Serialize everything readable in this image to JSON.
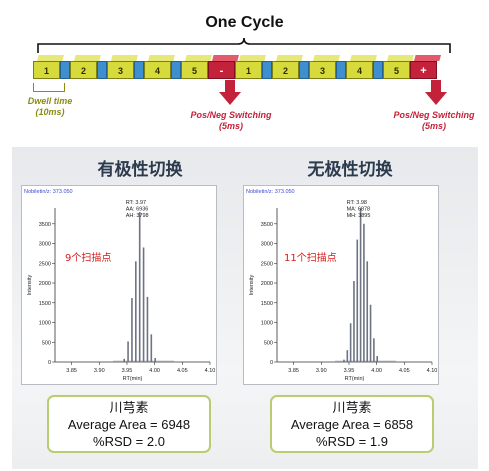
{
  "cycle": {
    "title": "One Cycle",
    "segments": [
      "1",
      "2",
      "3",
      "4",
      "5",
      "-",
      "1",
      "2",
      "3",
      "4",
      "5",
      "+"
    ],
    "dwell_label": [
      "Dwell time",
      "(10ms)"
    ],
    "switch_label_left": [
      "Pos/Neg Switching",
      "(5ms)"
    ],
    "switch_label_right": [
      "Pos/Neg Switching",
      "(5ms)"
    ],
    "colors": {
      "dwell": "#d6da3a",
      "gap": "#3d8fcf",
      "switch": "#c4223a",
      "arrow": "#c4223a"
    }
  },
  "panels": [
    {
      "title": "有极性切换",
      "chart_meta": "Nobiletin/z: 373.050",
      "peak_info": [
        "RT: 3.97",
        "AA: 6936",
        "AH: 3798"
      ],
      "annotation": "9个扫描点",
      "result": {
        "compound": "川芎素",
        "area": "Average Area = 6948",
        "rsd": "%RSD = 2.0"
      }
    },
    {
      "title": "无极性切换",
      "chart_meta": "Nobiletin/z: 373.050",
      "peak_info": [
        "RT: 3.98",
        "MA: 6878",
        "MH: 3895"
      ],
      "annotation": "11个扫描点",
      "result": {
        "compound": "川芎素",
        "area": "Average Area = 6858",
        "rsd": "%RSD = 1.9"
      }
    }
  ],
  "chart_data": [
    {
      "type": "bar",
      "xlabel": "RT(min)",
      "ylabel": "Intensity",
      "xlim": [
        3.82,
        4.1
      ],
      "ylim": [
        0,
        3900
      ],
      "xticks": [
        "3.85",
        "3.90",
        "3.95",
        "4.00",
        "4.05",
        "4.10"
      ],
      "yticks": [
        "0",
        "500",
        "1000",
        "1500",
        "2000",
        "2500",
        "3000",
        "3500"
      ],
      "x": [
        3.945,
        3.952,
        3.959,
        3.966,
        3.973,
        3.98,
        3.987,
        3.994,
        4.001
      ],
      "values": [
        80,
        520,
        1620,
        2550,
        3798,
        2900,
        1650,
        700,
        100
      ]
    },
    {
      "type": "bar",
      "xlabel": "RT(min)",
      "ylabel": "Intensity",
      "xlim": [
        3.82,
        4.1
      ],
      "ylim": [
        0,
        3900
      ],
      "xticks": [
        "3.85",
        "3.90",
        "3.95",
        "4.00",
        "4.05",
        "4.10"
      ],
      "yticks": [
        "0",
        "500",
        "1000",
        "1500",
        "2000",
        "2500",
        "3000",
        "3500"
      ],
      "x": [
        3.941,
        3.947,
        3.953,
        3.959,
        3.965,
        3.971,
        3.977,
        3.983,
        3.989,
        3.995,
        4.001
      ],
      "values": [
        60,
        300,
        980,
        2050,
        3100,
        3895,
        3500,
        2550,
        1450,
        600,
        150
      ]
    }
  ]
}
